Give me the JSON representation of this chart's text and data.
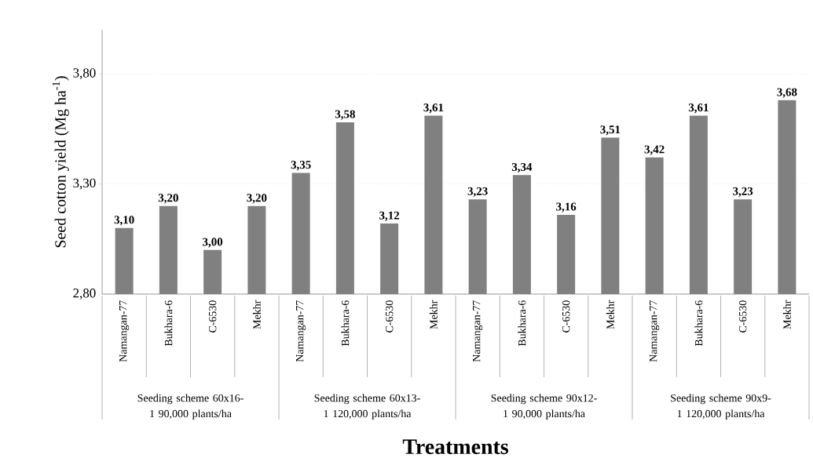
{
  "chart_data": {
    "type": "bar",
    "xlabel": "Treatments",
    "ylabel": "Seed cotton yield (Mg ha$^{-1}$)",
    "categories": [
      "Namangan-77",
      "Bukhara-6",
      "C-6530",
      "Mekhr",
      "Namangan-77",
      "Bukhara-6",
      "C-6530",
      "Mekhr",
      "Namangan-77",
      "Bukhara-6",
      "C-6530",
      "Mekhr",
      "Namangan-77",
      "Bukhara-6",
      "C-6530",
      "Mekhr"
    ],
    "values": [
      3.1,
      3.2,
      3.0,
      3.2,
      3.35,
      3.58,
      3.12,
      3.61,
      3.23,
      3.34,
      3.16,
      3.51,
      3.42,
      3.61,
      3.23,
      3.68
    ],
    "value_labels": [
      "3,10",
      "3,20",
      "3,00",
      "3,20",
      "3,35",
      "3,58",
      "3,12",
      "3,61",
      "3,23",
      "3,34",
      "3,16",
      "3,51",
      "3,42",
      "3,61",
      "3,23",
      "3,68"
    ],
    "color": "#808080",
    "ylim": [
      2.8,
      4.0
    ],
    "yticks": [
      {
        "value": 2.8,
        "label": "2,80"
      },
      {
        "value": 3.3,
        "label": "3,30"
      },
      {
        "value": 3.8,
        "label": "3,80"
      }
    ],
    "grid": "y",
    "annotations": [
      "Seeding scheme 60x16-1 90,000 plants/ha",
      "Seeding scheme 60x13-1 120,000 plants/ha",
      "Seeding scheme 90x12-1 90,000 plants/ha",
      "Seeding scheme 90x9-1 120,000 plants/ha"
    ]
  }
}
